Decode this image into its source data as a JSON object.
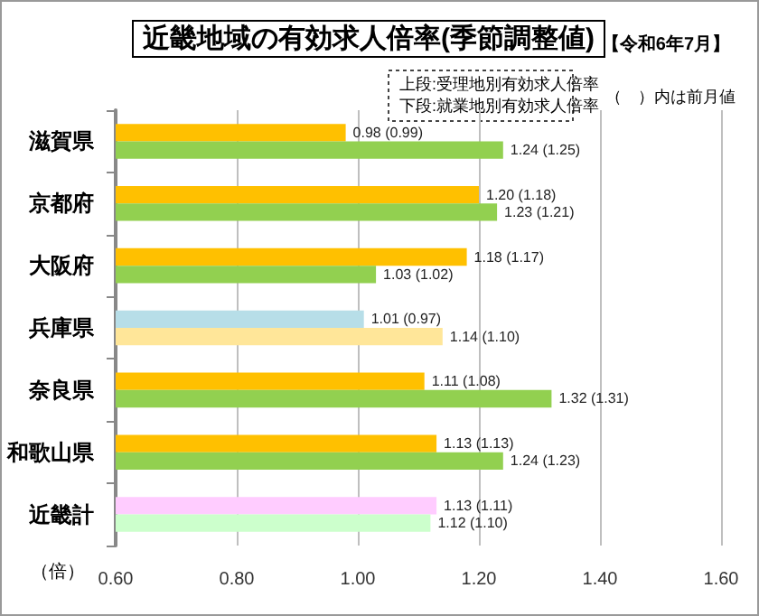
{
  "chart_data": {
    "type": "bar",
    "orientation": "horizontal",
    "title": "近畿地域の有効求人倍率(季節調整値)",
    "subtitle": "【令和6年7月】",
    "xlabel": "（倍）",
    "annotations": [
      "上段:受理地別有効求人倍率",
      "下段:就業地別有効求人倍率",
      "（　）内は前月値"
    ],
    "categories": [
      "滋賀県",
      "京都府",
      "大阪府",
      "兵庫県",
      "奈良県",
      "和歌山県",
      "近畿計"
    ],
    "series": [
      {
        "values": [
          0.98,
          1.2,
          1.18,
          1.01,
          1.11,
          1.13,
          1.13
        ],
        "colors": [
          "#ffc000",
          "#ffc000",
          "#ffc000",
          "#b7dee8",
          "#ffc000",
          "#ffc000",
          "#ffccff"
        ],
        "value_labels": [
          "0.98 (0.99)",
          "1.20 (1.18)",
          "1.18 (1.17)",
          "1.01 (0.97)",
          "1.11 (1.08)",
          "1.13 (1.13)",
          "1.13 (1.11)"
        ]
      },
      {
        "values": [
          1.24,
          1.23,
          1.03,
          1.14,
          1.32,
          1.24,
          1.12
        ],
        "colors": [
          "#92d050",
          "#92d050",
          "#92d050",
          "#ffe699",
          "#92d050",
          "#92d050",
          "#ccffcc"
        ],
        "value_labels": [
          "1.24 (1.25)",
          "1.23 (1.21)",
          "1.03 (1.02)",
          "1.14 (1.10)",
          "1.32 (1.31)",
          "1.24 (1.23)",
          "1.12 (1.10)"
        ]
      }
    ],
    "xlim": [
      0.6,
      1.6
    ],
    "xticks": [
      {
        "value": 0.6,
        "label": "0.60"
      },
      {
        "value": 0.8,
        "label": "0.80"
      },
      {
        "value": 1.0,
        "label": "1.00"
      },
      {
        "value": 1.2,
        "label": "1.20"
      },
      {
        "value": 1.4,
        "label": "1.40"
      },
      {
        "value": 1.6,
        "label": "1.60"
      }
    ],
    "grid": "x"
  }
}
